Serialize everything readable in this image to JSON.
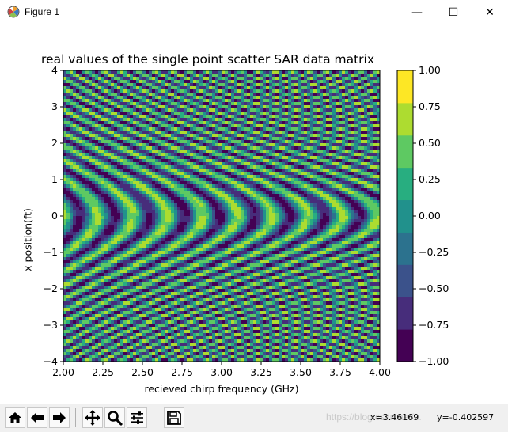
{
  "window": {
    "title": "Figure 1",
    "minimize_glyph": "—",
    "maximize_glyph": "☐",
    "close_glyph": "✕"
  },
  "chart_data": {
    "type": "heatmap",
    "title": "real values of the single point scatter SAR data matrix",
    "xlabel": "recieved chirp frequency (GHz)",
    "ylabel": "x position(ft)",
    "xlim": [
      2.0,
      4.0
    ],
    "ylim": [
      -4,
      4
    ],
    "x_ticks": [
      "2.00",
      "2.25",
      "2.50",
      "2.75",
      "3.00",
      "3.25",
      "3.50",
      "3.75",
      "4.00"
    ],
    "y_ticks": [
      "−4",
      "−3",
      "−2",
      "−1",
      "0",
      "1",
      "2",
      "3",
      "4"
    ],
    "colorbar": {
      "levels": [
        -1.0,
        -0.75,
        -0.5,
        -0.25,
        0.0,
        0.25,
        0.5,
        0.75,
        1.0
      ],
      "tick_labels": [
        "−1.00",
        "−0.75",
        "−0.50",
        "−0.25",
        "0.00",
        "0.25",
        "0.50",
        "0.75",
        "1.00"
      ],
      "colors": [
        "#440154",
        "#472d7b",
        "#3b528b",
        "#2c728e",
        "#21918c",
        "#28ae80",
        "#5ec962",
        "#addc30",
        "#fde725"
      ]
    },
    "colormap": "viridis",
    "style": "filled contour"
  },
  "toolbar": {
    "buttons": [
      {
        "name": "home-icon",
        "glyph": "home"
      },
      {
        "name": "back-icon",
        "glyph": "back"
      },
      {
        "name": "forward-icon",
        "glyph": "forward"
      },
      {
        "name": "pan-icon",
        "glyph": "pan"
      },
      {
        "name": "zoom-icon",
        "glyph": "zoom"
      },
      {
        "name": "configure-subplots-icon",
        "glyph": "sliders"
      },
      {
        "name": "save-icon",
        "glyph": "save"
      }
    ],
    "coords_x": "x=3.46169",
    "coords_y": "y=-0.402597",
    "watermark": "https://blog.csdn.net/..."
  }
}
